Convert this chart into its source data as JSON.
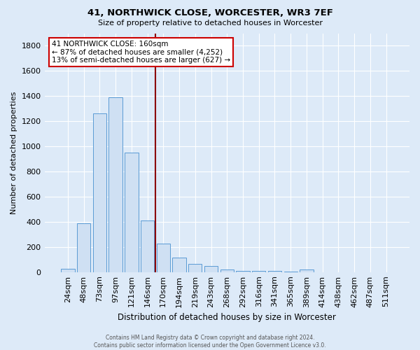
{
  "title": "41, NORTHWICK CLOSE, WORCESTER, WR3 7EF",
  "subtitle": "Size of property relative to detached houses in Worcester",
  "xlabel": "Distribution of detached houses by size in Worcester",
  "ylabel": "Number of detached properties",
  "footer_line1": "Contains HM Land Registry data © Crown copyright and database right 2024.",
  "footer_line2": "Contains public sector information licensed under the Open Government Licence v3.0.",
  "categories": [
    "24sqm",
    "48sqm",
    "73sqm",
    "97sqm",
    "121sqm",
    "146sqm",
    "170sqm",
    "194sqm",
    "219sqm",
    "243sqm",
    "268sqm",
    "292sqm",
    "316sqm",
    "341sqm",
    "365sqm",
    "389sqm",
    "414sqm",
    "438sqm",
    "462sqm",
    "487sqm",
    "511sqm"
  ],
  "values": [
    25,
    390,
    1260,
    1390,
    950,
    410,
    225,
    115,
    65,
    48,
    20,
    10,
    8,
    12,
    5,
    20,
    0,
    0,
    0,
    0,
    0
  ],
  "bar_color": "#cfe0f3",
  "bar_edge_color": "#5b9bd5",
  "background_color": "#ddeaf8",
  "grid_color": "#ffffff",
  "vline_x": 5.5,
  "vline_color": "#8b0000",
  "annotation_line1": "41 NORTHWICK CLOSE: 160sqm",
  "annotation_line2": "← 87% of detached houses are smaller (4,252)",
  "annotation_line3": "13% of semi-detached houses are larger (627) →",
  "annotation_box_color": "#ffffff",
  "annotation_box_edgecolor": "#cc0000",
  "ylim": [
    0,
    1900
  ],
  "yticks": [
    0,
    200,
    400,
    600,
    800,
    1000,
    1200,
    1400,
    1600,
    1800
  ]
}
